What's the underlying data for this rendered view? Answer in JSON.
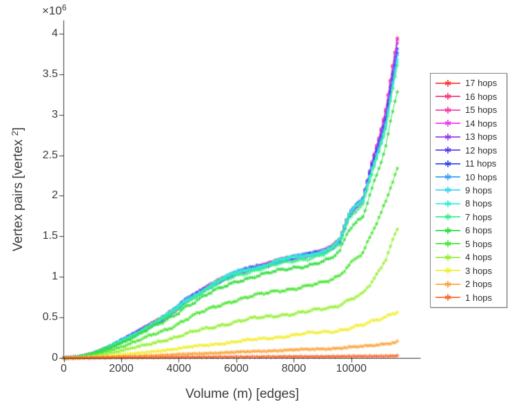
{
  "figure": {
    "background": "#ffffff",
    "axis_color": "#333333",
    "tick_text_color": "#3b3b3b"
  },
  "chart_data": {
    "type": "line",
    "title": "",
    "xlabel": "Volume (m) [edges]",
    "ylabel": "Vertex pairs [vertex²]",
    "ylabel_display": {
      "main": "Vertex pairs [vertex",
      "sup": "2",
      "end": "]"
    },
    "y_exponent": {
      "base": "×10",
      "power": "6"
    },
    "y_values_unit": "values expressed in units of 10^6 vertex pairs",
    "marker": "*",
    "grid": false,
    "legend_position": "right-outside",
    "xlim": [
      0,
      12400
    ],
    "ylim": [
      0,
      4.16
    ],
    "x_ticks": {
      "values": [
        0,
        2000,
        4000,
        6000,
        8000,
        10000
      ],
      "labels": [
        "0",
        "2000",
        "4000",
        "6000",
        "8000",
        "10000"
      ]
    },
    "y_ticks": {
      "values": [
        0,
        0.5,
        1,
        1.5,
        2,
        2.5,
        3,
        3.5,
        4
      ],
      "labels": [
        "0",
        "0.5",
        "1",
        "1.5",
        "2",
        "2.5",
        "3",
        "3.5",
        "4"
      ]
    },
    "x": [
      0,
      500,
      1000,
      1500,
      2000,
      2500,
      3000,
      3500,
      4000,
      4200,
      4500,
      5000,
      5500,
      6000,
      6500,
      7000,
      7500,
      8000,
      8500,
      9000,
      9300,
      9600,
      9900,
      10100,
      10400,
      10700,
      11000,
      11200,
      11400,
      11600
    ],
    "series": [
      {
        "label": "17 hops",
        "color": "#fb3b33",
        "values": [
          0,
          0.01,
          0.05,
          0.12,
          0.21,
          0.3,
          0.4,
          0.5,
          0.63,
          0.7,
          0.76,
          0.87,
          0.97,
          1.05,
          1.1,
          1.14,
          1.2,
          1.24,
          1.27,
          1.31,
          1.36,
          1.45,
          1.75,
          1.85,
          1.95,
          2.38,
          2.75,
          3.05,
          3.5,
          3.93
        ]
      },
      {
        "label": "16 hops",
        "color": "#f83a72",
        "values": [
          0,
          0.01,
          0.05,
          0.12,
          0.21,
          0.3,
          0.4,
          0.5,
          0.63,
          0.7,
          0.76,
          0.87,
          0.97,
          1.05,
          1.1,
          1.14,
          1.2,
          1.24,
          1.27,
          1.31,
          1.36,
          1.45,
          1.75,
          1.85,
          1.95,
          2.38,
          2.75,
          3.05,
          3.5,
          3.93
        ]
      },
      {
        "label": "15 hops",
        "color": "#f33fab",
        "values": [
          0,
          0.01,
          0.05,
          0.12,
          0.21,
          0.3,
          0.4,
          0.5,
          0.63,
          0.7,
          0.76,
          0.87,
          0.97,
          1.05,
          1.1,
          1.14,
          1.2,
          1.24,
          1.27,
          1.31,
          1.36,
          1.45,
          1.75,
          1.85,
          1.95,
          2.38,
          2.75,
          3.05,
          3.5,
          3.93
        ]
      },
      {
        "label": "14 hops",
        "color": "#ee3cee",
        "values": [
          0,
          0.01,
          0.05,
          0.12,
          0.21,
          0.3,
          0.4,
          0.5,
          0.63,
          0.7,
          0.76,
          0.87,
          0.97,
          1.05,
          1.1,
          1.14,
          1.2,
          1.24,
          1.27,
          1.31,
          1.36,
          1.45,
          1.75,
          1.85,
          1.95,
          2.38,
          2.75,
          3.05,
          3.5,
          3.93
        ]
      },
      {
        "label": "13 hops",
        "color": "#9b38f0",
        "values": [
          0,
          0.01,
          0.05,
          0.12,
          0.21,
          0.3,
          0.4,
          0.5,
          0.63,
          0.7,
          0.76,
          0.87,
          0.97,
          1.05,
          1.1,
          1.14,
          1.2,
          1.24,
          1.27,
          1.31,
          1.36,
          1.45,
          1.75,
          1.85,
          1.95,
          2.37,
          2.73,
          3.02,
          3.46,
          3.88
        ]
      },
      {
        "label": "12 hops",
        "color": "#5d3df2",
        "values": [
          0,
          0.01,
          0.05,
          0.12,
          0.21,
          0.3,
          0.4,
          0.5,
          0.63,
          0.7,
          0.76,
          0.87,
          0.97,
          1.05,
          1.1,
          1.14,
          1.2,
          1.24,
          1.27,
          1.31,
          1.36,
          1.45,
          1.75,
          1.85,
          1.95,
          2.36,
          2.7,
          2.98,
          3.42,
          3.83
        ]
      },
      {
        "label": "11 hops",
        "color": "#3148ef",
        "values": [
          0,
          0.01,
          0.05,
          0.12,
          0.21,
          0.3,
          0.4,
          0.5,
          0.63,
          0.7,
          0.76,
          0.87,
          0.97,
          1.05,
          1.1,
          1.14,
          1.2,
          1.24,
          1.27,
          1.31,
          1.36,
          1.45,
          1.75,
          1.85,
          1.95,
          2.34,
          2.68,
          2.95,
          3.38,
          3.78
        ]
      },
      {
        "label": "10 hops",
        "color": "#36a3f2",
        "values": [
          0,
          0.01,
          0.05,
          0.12,
          0.21,
          0.3,
          0.4,
          0.5,
          0.63,
          0.7,
          0.76,
          0.87,
          0.97,
          1.05,
          1.1,
          1.14,
          1.2,
          1.24,
          1.27,
          1.31,
          1.36,
          1.45,
          1.75,
          1.85,
          1.95,
          2.33,
          2.65,
          2.92,
          3.33,
          3.73
        ]
      },
      {
        "label": "9 hops",
        "color": "#3bd7f2",
        "values": [
          0,
          0.01,
          0.05,
          0.12,
          0.21,
          0.3,
          0.4,
          0.5,
          0.63,
          0.7,
          0.76,
          0.87,
          0.97,
          1.05,
          1.1,
          1.14,
          1.2,
          1.24,
          1.27,
          1.31,
          1.36,
          1.45,
          1.75,
          1.85,
          1.95,
          2.32,
          2.63,
          2.88,
          3.29,
          3.68
        ]
      },
      {
        "label": "8 hops",
        "color": "#35efd2",
        "values": [
          0,
          0.01,
          0.05,
          0.12,
          0.21,
          0.3,
          0.4,
          0.5,
          0.63,
          0.7,
          0.76,
          0.87,
          0.97,
          1.05,
          1.1,
          1.14,
          1.2,
          1.24,
          1.27,
          1.31,
          1.36,
          1.45,
          1.75,
          1.85,
          1.95,
          2.31,
          2.6,
          2.85,
          3.25,
          3.63
        ]
      },
      {
        "label": "7 hops",
        "color": "#36ef8d",
        "values": [
          0,
          0.01,
          0.05,
          0.12,
          0.2,
          0.29,
          0.39,
          0.49,
          0.61,
          0.68,
          0.74,
          0.84,
          0.94,
          1.02,
          1.07,
          1.11,
          1.16,
          1.2,
          1.23,
          1.27,
          1.32,
          1.4,
          1.7,
          1.8,
          1.9,
          2.26,
          2.58,
          2.82,
          3.24,
          3.59
        ]
      },
      {
        "label": "6 hops",
        "color": "#31dc3e",
        "values": [
          0,
          0.01,
          0.05,
          0.11,
          0.19,
          0.27,
          0.36,
          0.45,
          0.57,
          0.63,
          0.68,
          0.78,
          0.87,
          0.95,
          0.99,
          1.03,
          1.08,
          1.12,
          1.14,
          1.18,
          1.22,
          1.32,
          1.58,
          1.66,
          1.75,
          2.07,
          2.37,
          2.6,
          2.97,
          3.29
        ]
      },
      {
        "label": "5 hops",
        "color": "#49e432",
        "values": [
          0,
          0.005,
          0.03,
          0.08,
          0.14,
          0.2,
          0.27,
          0.34,
          0.43,
          0.47,
          0.52,
          0.59,
          0.66,
          0.72,
          0.76,
          0.79,
          0.83,
          0.86,
          0.89,
          0.92,
          0.96,
          1.02,
          1.15,
          1.22,
          1.3,
          1.52,
          1.75,
          1.92,
          2.14,
          2.34
        ]
      },
      {
        "label": "4 hops",
        "color": "#97ef35",
        "values": [
          0,
          0.003,
          0.02,
          0.05,
          0.09,
          0.13,
          0.17,
          0.22,
          0.27,
          0.29,
          0.32,
          0.36,
          0.41,
          0.45,
          0.48,
          0.5,
          0.53,
          0.55,
          0.57,
          0.6,
          0.62,
          0.66,
          0.72,
          0.75,
          0.79,
          0.92,
          1.08,
          1.22,
          1.42,
          1.6
        ]
      },
      {
        "label": "3 hops",
        "color": "#f0ee33",
        "values": [
          0,
          0.002,
          0.01,
          0.02,
          0.04,
          0.055,
          0.075,
          0.095,
          0.115,
          0.125,
          0.14,
          0.16,
          0.18,
          0.2,
          0.22,
          0.24,
          0.26,
          0.28,
          0.3,
          0.32,
          0.33,
          0.345,
          0.365,
          0.38,
          0.4,
          0.44,
          0.48,
          0.51,
          0.55,
          0.58
        ]
      },
      {
        "label": "2 hops",
        "color": "#fba43a",
        "values": [
          0,
          0.001,
          0.004,
          0.009,
          0.015,
          0.021,
          0.028,
          0.035,
          0.043,
          0.046,
          0.05,
          0.057,
          0.064,
          0.071,
          0.078,
          0.085,
          0.092,
          0.099,
          0.105,
          0.112,
          0.116,
          0.122,
          0.13,
          0.134,
          0.14,
          0.152,
          0.166,
          0.178,
          0.19,
          0.2
        ]
      },
      {
        "label": "1 hops",
        "color": "#f8692f",
        "values": [
          0,
          0.001,
          0.002,
          0.003,
          0.004,
          0.005,
          0.006,
          0.007,
          0.008,
          0.009,
          0.009,
          0.01,
          0.011,
          0.012,
          0.013,
          0.014,
          0.015,
          0.016,
          0.016,
          0.017,
          0.018,
          0.018,
          0.019,
          0.02,
          0.02,
          0.021,
          0.022,
          0.023,
          0.024,
          0.025
        ]
      }
    ]
  }
}
